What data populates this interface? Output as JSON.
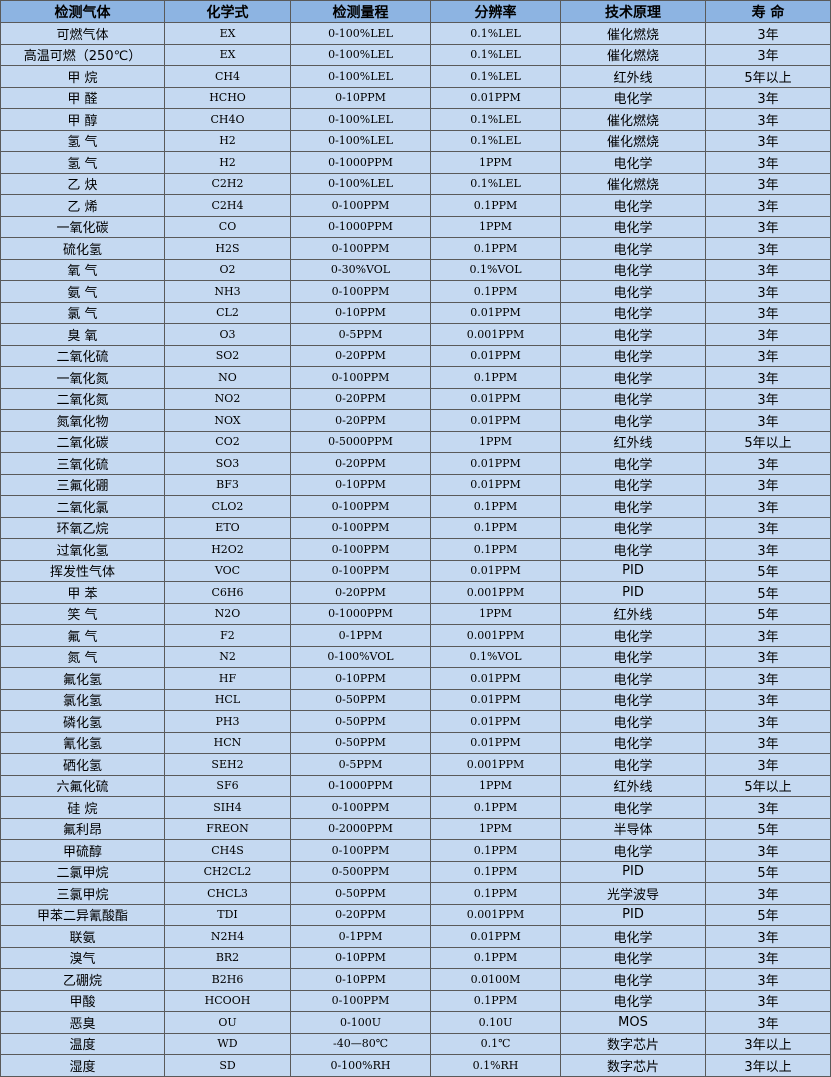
{
  "headers": [
    "检测气体",
    "化学式",
    "检测量程",
    "分辨率",
    "技术原理",
    "寿 命"
  ],
  "rows": [
    [
      "可燃气体",
      "EX",
      "0-100%LEL",
      "0.1%LEL",
      "催化燃烧",
      "3年"
    ],
    [
      "高温可燃（250℃）",
      "EX",
      "0-100%LEL",
      "0.1%LEL",
      "催化燃烧",
      "3年"
    ],
    [
      "甲 烷",
      "CH4",
      "0-100%LEL",
      "0.1%LEL",
      "红外线",
      "5年以上"
    ],
    [
      "甲 醛",
      "HCHO",
      "0-10PPM",
      "0.01PPM",
      "电化学",
      "3年"
    ],
    [
      "甲 醇",
      "CH4O",
      "0-100%LEL",
      "0.1%LEL",
      "催化燃烧",
      "3年"
    ],
    [
      "氢 气",
      "H2",
      "0-100%LEL",
      "0.1%LEL",
      "催化燃烧",
      "3年"
    ],
    [
      "氢 气",
      "H2",
      "0-1000PPM",
      "1PPM",
      "电化学",
      "3年"
    ],
    [
      "乙 炔",
      "C2H2",
      "0-100%LEL",
      "0.1%LEL",
      "催化燃烧",
      "3年"
    ],
    [
      "乙 烯",
      "C2H4",
      "0-100PPM",
      "0.1PPM",
      "电化学",
      "3年"
    ],
    [
      "一氧化碳",
      "CO",
      "0-1000PPM",
      "1PPM",
      "电化学",
      "3年"
    ],
    [
      "硫化氢",
      "H2S",
      "0-100PPM",
      "0.1PPM",
      "电化学",
      "3年"
    ],
    [
      "氧 气",
      "O2",
      "0-30%VOL",
      "0.1%VOL",
      "电化学",
      "3年"
    ],
    [
      "氨 气",
      "NH3",
      "0-100PPM",
      "0.1PPM",
      "电化学",
      "3年"
    ],
    [
      "氯 气",
      "CL2",
      "0-10PPM",
      "0.01PPM",
      "电化学",
      "3年"
    ],
    [
      "臭 氧",
      "O3",
      "0-5PPM",
      "0.001PPM",
      "电化学",
      "3年"
    ],
    [
      "二氧化硫",
      "SO2",
      "0-20PPM",
      "0.01PPM",
      "电化学",
      "3年"
    ],
    [
      "一氧化氮",
      "NO",
      "0-100PPM",
      "0.1PPM",
      "电化学",
      "3年"
    ],
    [
      "二氧化氮",
      "NO2",
      "0-20PPM",
      "0.01PPM",
      "电化学",
      "3年"
    ],
    [
      "氮氧化物",
      "NOX",
      "0-20PPM",
      "0.01PPM",
      "电化学",
      "3年"
    ],
    [
      "二氧化碳",
      "CO2",
      "0-5000PPM",
      "1PPM",
      "红外线",
      "5年以上"
    ],
    [
      "三氧化硫",
      "SO3",
      "0-20PPM",
      "0.01PPM",
      "电化学",
      "3年"
    ],
    [
      "三氟化硼",
      "BF3",
      "0-10PPM",
      "0.01PPM",
      "电化学",
      "3年"
    ],
    [
      "二氧化氯",
      "CLO2",
      "0-100PPM",
      "0.1PPM",
      "电化学",
      "3年"
    ],
    [
      "环氧乙烷",
      "ETO",
      "0-100PPM",
      "0.1PPM",
      "电化学",
      "3年"
    ],
    [
      "过氧化氢",
      "H2O2",
      "0-100PPM",
      "0.1PPM",
      "电化学",
      "3年"
    ],
    [
      "挥发性气体",
      "VOC",
      "0-100PPM",
      "0.01PPM",
      "PID",
      "5年"
    ],
    [
      "甲 苯",
      "C6H6",
      "0-20PPM",
      "0.001PPM",
      "PID",
      "5年"
    ],
    [
      "笑 气",
      "N2O",
      "0-1000PPM",
      "1PPM",
      "红外线",
      "5年"
    ],
    [
      "氟 气",
      "F2",
      "0-1PPM",
      "0.001PPM",
      "电化学",
      "3年"
    ],
    [
      "氮 气",
      "N2",
      "0-100%VOL",
      "0.1%VOL",
      "电化学",
      "3年"
    ],
    [
      "氟化氢",
      "HF",
      "0-10PPM",
      "0.01PPM",
      "电化学",
      "3年"
    ],
    [
      "氯化氢",
      "HCL",
      "0-50PPM",
      "0.01PPM",
      "电化学",
      "3年"
    ],
    [
      "磷化氢",
      "PH3",
      "0-50PPM",
      "0.01PPM",
      "电化学",
      "3年"
    ],
    [
      "氰化氢",
      "HCN",
      "0-50PPM",
      "0.01PPM",
      "电化学",
      "3年"
    ],
    [
      "硒化氢",
      "SEH2",
      "0-5PPM",
      "0.001PPM",
      "电化学",
      "3年"
    ],
    [
      "六氟化硫",
      "SF6",
      "0-1000PPM",
      "1PPM",
      "红外线",
      "5年以上"
    ],
    [
      "硅 烷",
      "SIH4",
      "0-100PPM",
      "0.1PPM",
      "电化学",
      "3年"
    ],
    [
      "氟利昂",
      "FREON",
      "0-2000PPM",
      "1PPM",
      "半导体",
      "5年"
    ],
    [
      "甲硫醇",
      "CH4S",
      "0-100PPM",
      "0.1PPM",
      "电化学",
      "3年"
    ],
    [
      "二氯甲烷",
      "CH2CL2",
      "0-500PPM",
      "0.1PPM",
      "PID",
      "5年"
    ],
    [
      "三氯甲烷",
      "CHCL3",
      "0-50PPM",
      "0.1PPM",
      "光学波导",
      "3年"
    ],
    [
      "甲苯二异氰酸酯",
      "TDI",
      "0-20PPM",
      "0.001PPM",
      "PID",
      "5年"
    ],
    [
      "联氨",
      "N2H4",
      "0-1PPM",
      "0.01PPM",
      "电化学",
      "3年"
    ],
    [
      "溴气",
      "BR2",
      "0-10PPM",
      "0.1PPM",
      "电化学",
      "3年"
    ],
    [
      "乙硼烷",
      "B2H6",
      "0-10PPM",
      "0.0100M",
      "电化学",
      "3年"
    ],
    [
      "甲酸",
      "HCOOH",
      "0-100PPM",
      "0.1PPM",
      "电化学",
      "3年"
    ],
    [
      "恶臭",
      "OU",
      "0-100U",
      "0.10U",
      "MOS",
      "3年"
    ],
    [
      "温度",
      "WD",
      "-40—80℃",
      "0.1℃",
      "数字芯片",
      "3年以上"
    ],
    [
      "湿度",
      "SD",
      "0-100%RH",
      "0.1%RH",
      "数字芯片",
      "3年以上"
    ]
  ],
  "colors": {
    "header_bg": "#8db4e2",
    "row_bg": "#c5d9f1",
    "border": "#5a5a5a"
  }
}
